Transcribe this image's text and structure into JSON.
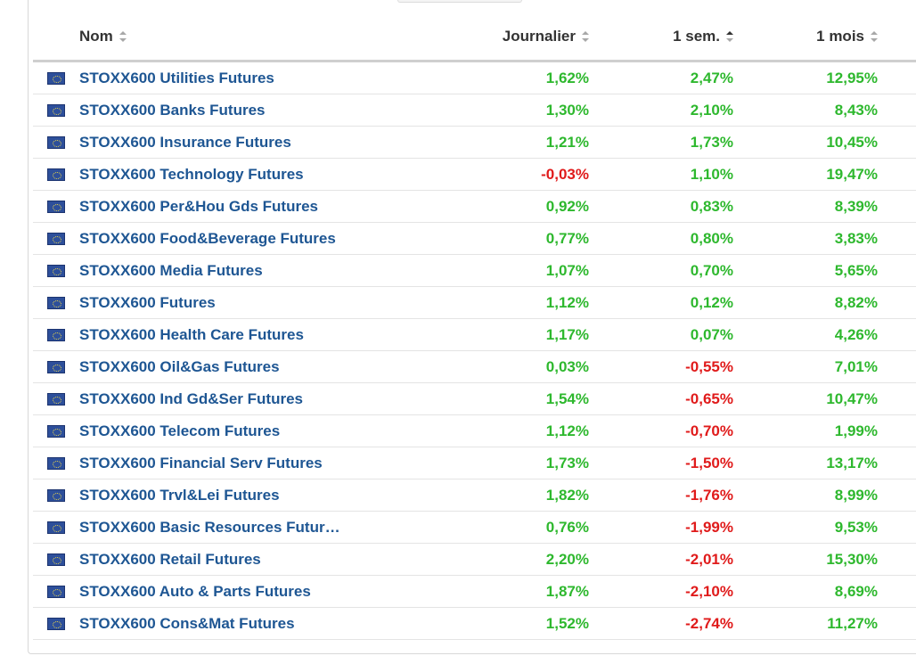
{
  "headers": {
    "name": "Nom",
    "daily": "Journalier",
    "week": "1 sem.",
    "month": "1 mois"
  },
  "colors": {
    "positive": "#2eb82e",
    "negative": "#e01b1b",
    "link": "#1e5693"
  },
  "flag_icon": "eu-flag-icon",
  "rows": [
    {
      "name": "STOXX600 Utilities Futures",
      "daily": "1,62%",
      "week": "2,47%",
      "month": "12,95%"
    },
    {
      "name": "STOXX600 Banks Futures",
      "daily": "1,30%",
      "week": "2,10%",
      "month": "8,43%"
    },
    {
      "name": "STOXX600 Insurance Futures",
      "daily": "1,21%",
      "week": "1,73%",
      "month": "10,45%"
    },
    {
      "name": "STOXX600 Technology Futures",
      "daily": "-0,03%",
      "week": "1,10%",
      "month": "19,47%"
    },
    {
      "name": "STOXX600 Per&Hou Gds Futures",
      "daily": "0,92%",
      "week": "0,83%",
      "month": "8,39%"
    },
    {
      "name": "STOXX600 Food&Beverage Futures",
      "daily": "0,77%",
      "week": "0,80%",
      "month": "3,83%"
    },
    {
      "name": "STOXX600 Media Futures",
      "daily": "1,07%",
      "week": "0,70%",
      "month": "5,65%"
    },
    {
      "name": "STOXX600 Futures",
      "daily": "1,12%",
      "week": "0,12%",
      "month": "8,82%"
    },
    {
      "name": "STOXX600 Health Care Futures",
      "daily": "1,17%",
      "week": "0,07%",
      "month": "4,26%"
    },
    {
      "name": "STOXX600 Oil&Gas Futures",
      "daily": "0,03%",
      "week": "-0,55%",
      "month": "7,01%"
    },
    {
      "name": "STOXX600 Ind Gd&Ser Futures",
      "daily": "1,54%",
      "week": "-0,65%",
      "month": "10,47%"
    },
    {
      "name": "STOXX600 Telecom Futures",
      "daily": "1,12%",
      "week": "-0,70%",
      "month": "1,99%"
    },
    {
      "name": "STOXX600 Financial Serv Futures",
      "daily": "1,73%",
      "week": "-1,50%",
      "month": "13,17%"
    },
    {
      "name": "STOXX600 Trvl&Lei Futures",
      "daily": "1,82%",
      "week": "-1,76%",
      "month": "8,99%"
    },
    {
      "name": "STOXX600 Basic Resources Futur…",
      "daily": "0,76%",
      "week": "-1,99%",
      "month": "9,53%"
    },
    {
      "name": "STOXX600 Retail Futures",
      "daily": "2,20%",
      "week": "-2,01%",
      "month": "15,30%"
    },
    {
      "name": "STOXX600 Auto & Parts Futures",
      "daily": "1,87%",
      "week": "-2,10%",
      "month": "8,69%"
    },
    {
      "name": "STOXX600 Cons&Mat Futures",
      "daily": "1,52%",
      "week": "-2,74%",
      "month": "11,27%"
    }
  ]
}
